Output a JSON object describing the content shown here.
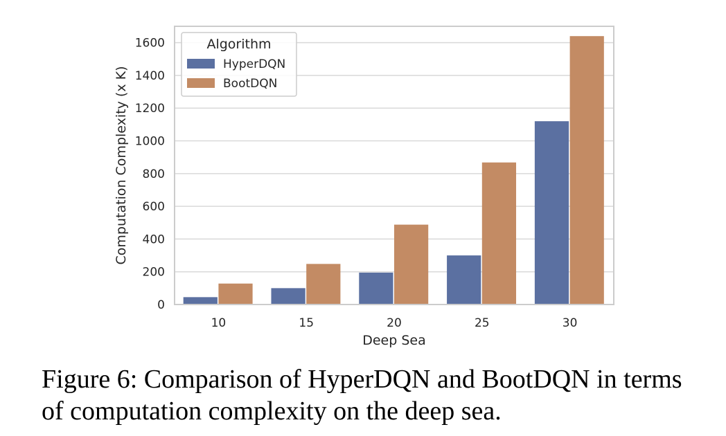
{
  "chart_data": {
    "type": "bar",
    "categories": [
      "10",
      "15",
      "20",
      "25",
      "30"
    ],
    "series": [
      {
        "name": "HyperDQN",
        "color": "#5b70a1",
        "values": [
          45,
          100,
          195,
          300,
          1120
        ]
      },
      {
        "name": "BootDQN",
        "color": "#c38b64",
        "values": [
          128,
          248,
          488,
          868,
          1640
        ]
      }
    ],
    "xlabel": "Deep Sea",
    "ylabel": "Computation Complexity (x K)",
    "ylim": [
      0,
      1700
    ],
    "yticks": [
      0,
      200,
      400,
      600,
      800,
      1000,
      1200,
      1400,
      1600
    ],
    "legend": {
      "title": "Algorithm",
      "placement": "top-left"
    },
    "grid": true
  },
  "caption": "Figure 6: Comparison of HyperDQN and BootDQN in terms of computation complexity on the deep sea."
}
